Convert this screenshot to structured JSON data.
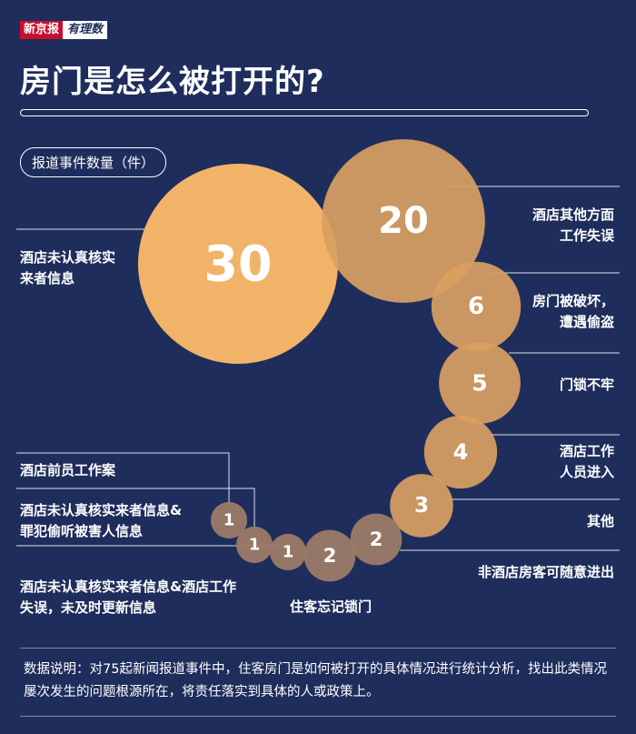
{
  "brand": {
    "name": "新京报",
    "sub": "有理数"
  },
  "title": "房门是怎么被打开的?",
  "colors": {
    "background": "#1e2d5c",
    "orange": "#f7b868",
    "tan": "#d9a062",
    "brown": "#9b7b66"
  },
  "chart_data": {
    "type": "bubble",
    "unit_label": "报道事件数量（件）",
    "series": [
      {
        "value": 30,
        "label": "酒店未认真核实来者信息"
      },
      {
        "value": 20,
        "label": "酒店其他方面工作失误"
      },
      {
        "value": 6,
        "label": "房门被破坏，遭遇偷盗"
      },
      {
        "value": 5,
        "label": "门锁不牢"
      },
      {
        "value": 4,
        "label": "酒店工作人员进入"
      },
      {
        "value": 3,
        "label": "其他"
      },
      {
        "value": 2,
        "label": "非酒店房客可随意进出"
      },
      {
        "value": 2,
        "label": "住客忘记锁门"
      },
      {
        "value": 1,
        "label": "酒店未认真核实来者信息&酒店工作失误，未及时更新信息"
      },
      {
        "value": 1,
        "label": "酒店未认真核实来者信息&罪犯偷听被害人信息"
      },
      {
        "value": 1,
        "label": "酒店前员工作案"
      }
    ]
  },
  "labels": {
    "l30": [
      "酒店未认真核实",
      "来者信息"
    ],
    "l20": [
      "酒店其他方面",
      "工作失误"
    ],
    "l6": [
      "房门被破坏，",
      "遭遇偷盗"
    ],
    "l5": [
      "门锁不牢"
    ],
    "l4": [
      "酒店工作",
      "人员进入"
    ],
    "l3": [
      "其他"
    ],
    "l2a": [
      "非酒店房客可随意进出"
    ],
    "l2b": [
      "住客忘记锁门"
    ],
    "l1a": [
      "酒店未认真核实来者信息&酒店工作",
      "失误，未及时更新信息"
    ],
    "l1b": [
      "酒店未认真核实来者信息&",
      "罪犯偷听被害人信息"
    ],
    "l1c": [
      "酒店前员工作案"
    ]
  },
  "note": "数据说明：对75起新闻报道事件中，住客房门是如何被打开的具体情况进行统计分析，找出此类情况屡次发生的问题根源所在，将责任落实到具体的人或政策上。"
}
